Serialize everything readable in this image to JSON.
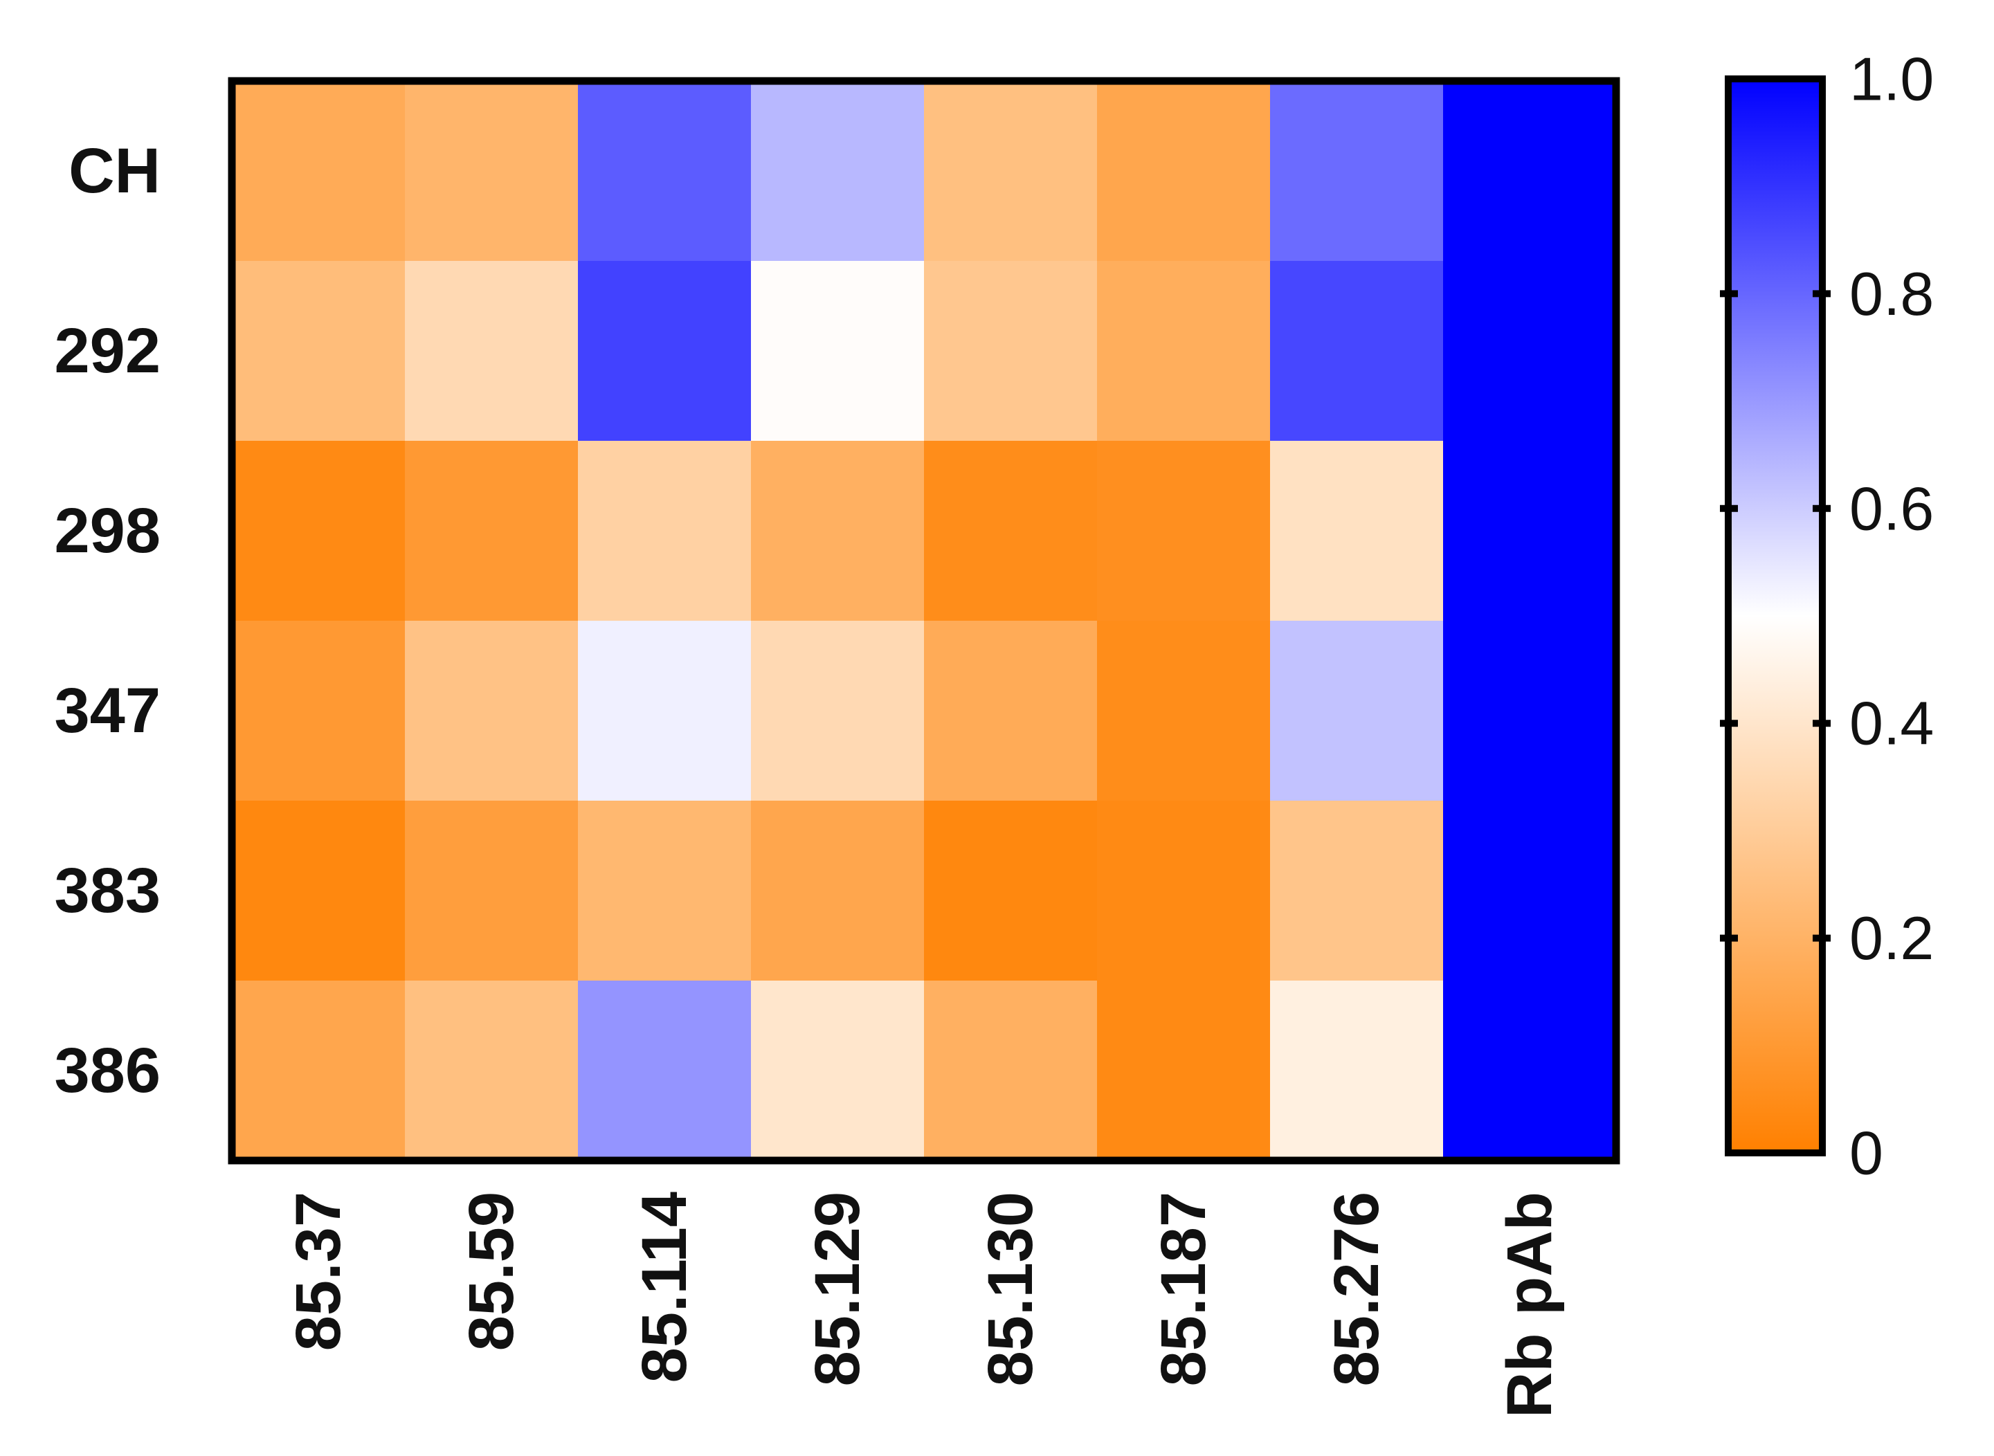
{
  "chart_data": {
    "type": "heatmap",
    "rows": [
      "CH",
      "292",
      "298",
      "347",
      "383",
      "386"
    ],
    "columns": [
      "85.37",
      "85.59",
      "85.114",
      "85.129",
      "85.130",
      "85.187",
      "85.276",
      "Rb pAb"
    ],
    "values": [
      [
        0.17,
        0.21,
        0.82,
        0.64,
        0.25,
        0.15,
        0.79,
        1.0
      ],
      [
        0.24,
        0.35,
        0.87,
        0.49,
        0.28,
        0.18,
        0.86,
        1.0
      ],
      [
        0.04,
        0.1,
        0.32,
        0.19,
        0.05,
        0.06,
        0.38,
        1.0
      ],
      [
        0.1,
        0.26,
        0.53,
        0.35,
        0.17,
        0.05,
        0.62,
        1.0
      ],
      [
        0.03,
        0.12,
        0.22,
        0.15,
        0.03,
        0.04,
        0.27,
        1.0
      ],
      [
        0.15,
        0.25,
        0.71,
        0.4,
        0.19,
        0.04,
        0.44,
        1.0
      ]
    ],
    "colorbar": {
      "range": [
        0,
        1.0
      ],
      "ticks": [
        0,
        0.2,
        0.4,
        0.6,
        0.8,
        1.0
      ],
      "tick_labels": [
        "0",
        "0.2",
        "0.4",
        "0.6",
        "0.8",
        "1.0"
      ],
      "colors": [
        {
          "stop": 0.0,
          "color": "#ff8000"
        },
        {
          "stop": 0.5,
          "color": "#ffffff"
        },
        {
          "stop": 1.0,
          "color": "#0000ff"
        }
      ]
    },
    "title": "",
    "xlabel": "",
    "ylabel": ""
  }
}
